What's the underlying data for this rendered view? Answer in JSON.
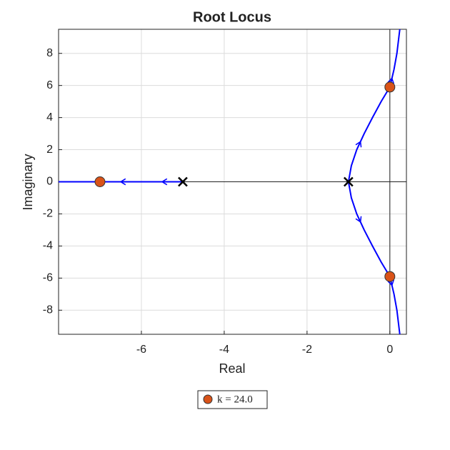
{
  "chart_data": {
    "type": "root-locus",
    "title": "Root Locus",
    "x_label": "Real",
    "y_label": "Imaginary",
    "xlim": [
      -8,
      0.4
    ],
    "ylim": [
      -9.5,
      9.5
    ],
    "xticks": [
      -6,
      -4,
      -2,
      0
    ],
    "yticks": [
      -8,
      -6,
      -4,
      -2,
      0,
      2,
      4,
      6,
      8
    ],
    "grid": true,
    "branch_color": "#0000ff",
    "branches": [
      {
        "x": [
          -5,
          -6,
          -7,
          -8
        ],
        "y": [
          0,
          0,
          0,
          0
        ]
      },
      {
        "x": [
          -1,
          -0.93,
          -0.8,
          -0.62,
          -0.42,
          -0.21,
          0,
          0.1,
          0.17,
          0.24
        ],
        "y": [
          0,
          1,
          2,
          3,
          4,
          5,
          5.9,
          7,
          8,
          9.5
        ]
      },
      {
        "x": [
          -1,
          -0.93,
          -0.8,
          -0.62,
          -0.42,
          -0.21,
          0,
          0.1,
          0.17,
          0.24
        ],
        "y": [
          0,
          -1,
          -2,
          -3,
          -4,
          -5,
          -5.9,
          -7,
          -8,
          -9.5
        ]
      }
    ],
    "poles": {
      "x": [
        -5,
        -1
      ],
      "y": [
        0,
        0
      ]
    },
    "gain_points": {
      "name": "k = 24.0",
      "color": "#d95319",
      "x": [
        -7,
        0,
        0
      ],
      "y": [
        0,
        5.9,
        -5.9
      ]
    }
  }
}
